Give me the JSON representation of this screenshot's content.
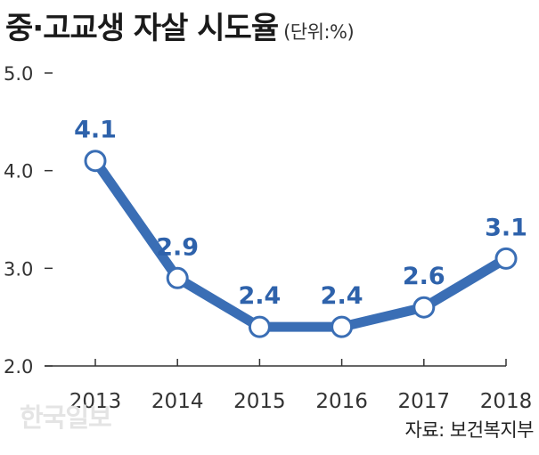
{
  "header": {
    "title": "중·고교생 자살 시도율",
    "unit": "(단위:%)"
  },
  "footer": {
    "source": "자료: 보건복지부",
    "watermark": "한국일보"
  },
  "chart_data": {
    "type": "line",
    "title": "중·고교생 자살 시도율",
    "xlabel": "",
    "ylabel": "",
    "categories": [
      "2013",
      "2014",
      "2015",
      "2016",
      "2017",
      "2018"
    ],
    "values": [
      4.1,
      2.9,
      2.4,
      2.4,
      2.6,
      3.1
    ],
    "data_labels": [
      "4.1",
      "2.9",
      "2.4",
      "2.4",
      "2.6",
      "3.1"
    ],
    "yticks": [
      2.0,
      3.0,
      4.0,
      5.0
    ],
    "ytick_labels": [
      "2.0",
      "3.0",
      "4.0",
      "5.0"
    ],
    "ylim": [
      2.0,
      5.0
    ],
    "grid": false,
    "colors": {
      "line": "#3a6eb5",
      "label": "#2e62ab",
      "axis": "#333333",
      "marker_fill": "#ffffff"
    }
  }
}
